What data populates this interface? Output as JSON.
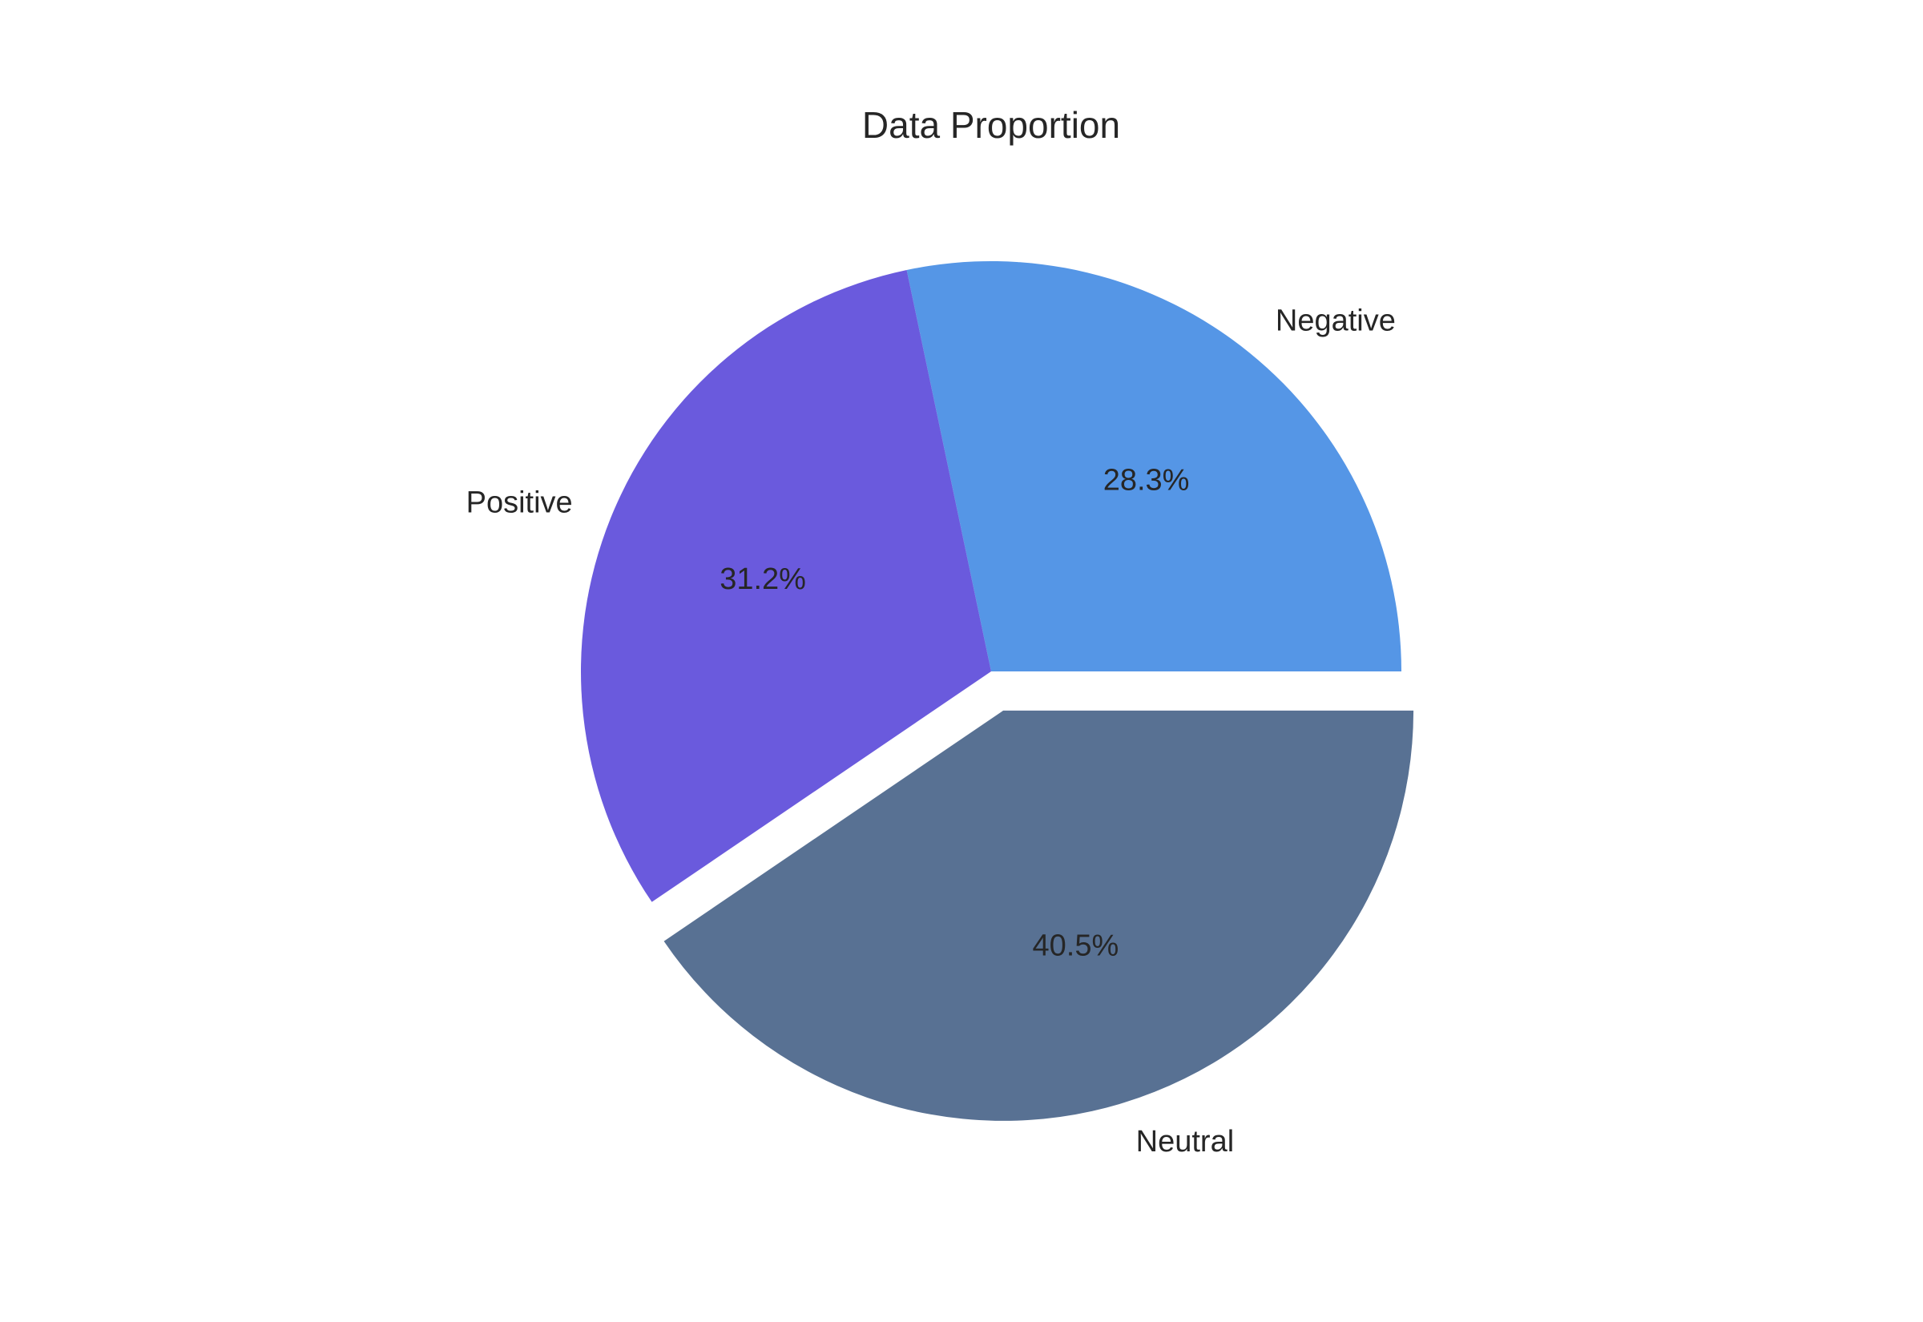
{
  "chart_data": {
    "type": "pie",
    "title": "Data Proportion",
    "labels": [
      "Negative",
      "Positive",
      "Neutral"
    ],
    "values": [
      28.3,
      31.2,
      40.5
    ],
    "value_labels": [
      "28.3%",
      "31.2%",
      "40.5%"
    ],
    "colors": [
      "#5596e6",
      "#6a5add",
      "#587193"
    ],
    "exploded": [
      "Neutral"
    ],
    "start": "3 o'clock",
    "direction": "counterclockwise"
  }
}
